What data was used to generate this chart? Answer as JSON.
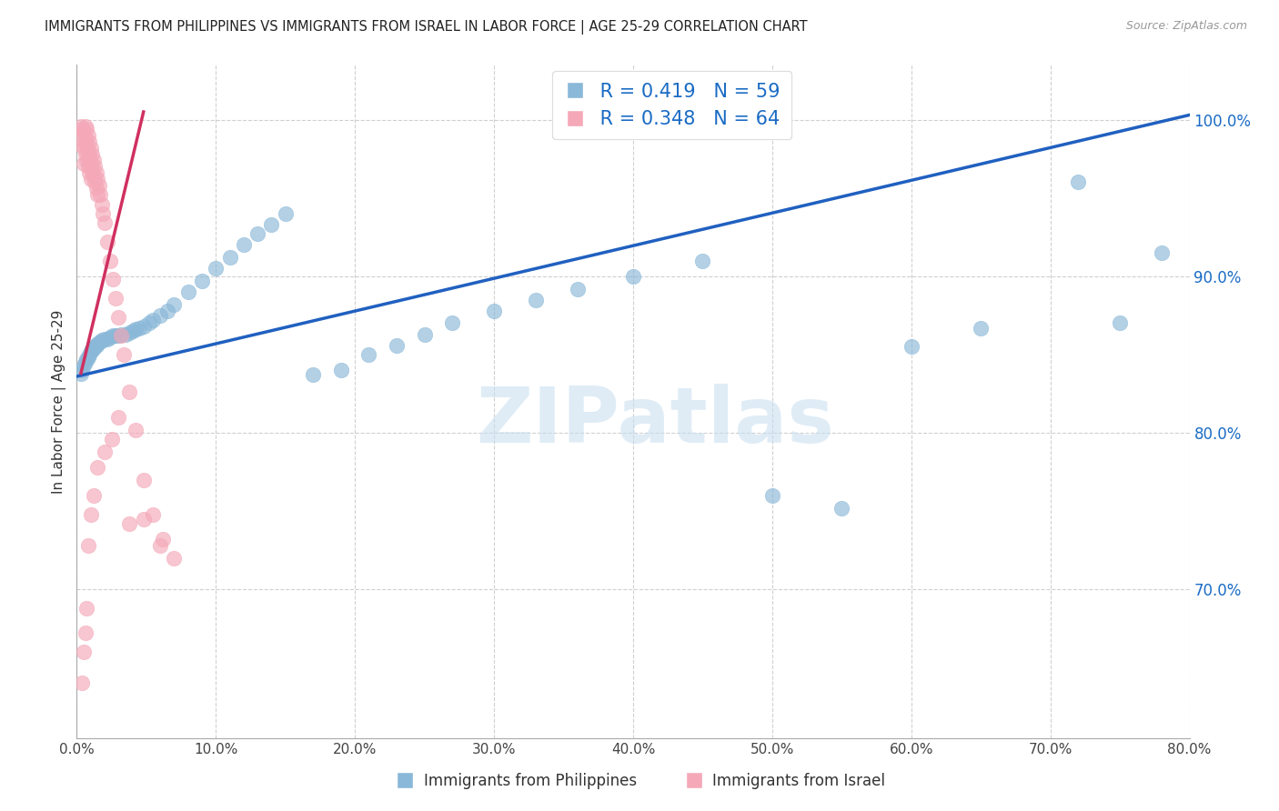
{
  "title": "IMMIGRANTS FROM PHILIPPINES VS IMMIGRANTS FROM ISRAEL IN LABOR FORCE | AGE 25-29 CORRELATION CHART",
  "source": "Source: ZipAtlas.com",
  "ylabel": "In Labor Force | Age 25-29",
  "xlim": [
    0.0,
    0.8
  ],
  "ylim": [
    0.605,
    1.035
  ],
  "ytick_vals": [
    0.7,
    0.8,
    0.9,
    1.0
  ],
  "xtick_vals": [
    0.0,
    0.1,
    0.2,
    0.3,
    0.4,
    0.5,
    0.6,
    0.7,
    0.8
  ],
  "blue_R": "0.419",
  "blue_N": "59",
  "pink_R": "0.348",
  "pink_N": "64",
  "blue_dot_color": "#8ab8d8",
  "pink_dot_color": "#f4a8b8",
  "blue_line_color": "#2060c0",
  "pink_line_color": "#d03060",
  "blue_label": "Immigrants from Philippines",
  "pink_label": "Immigrants from Israel",
  "watermark": "ZIPatlas",
  "blue_trend_x": [
    0.0,
    0.8
  ],
  "blue_trend_y": [
    0.836,
    1.003
  ],
  "pink_trend_x": [
    0.003,
    0.048
  ],
  "pink_trend_y": [
    0.838,
    1.005
  ],
  "blue_x": [
    0.003,
    0.004,
    0.005,
    0.006,
    0.007,
    0.008,
    0.009,
    0.01,
    0.011,
    0.012,
    0.013,
    0.014,
    0.015,
    0.017,
    0.018,
    0.02,
    0.022,
    0.024,
    0.026,
    0.028,
    0.03,
    0.032,
    0.035,
    0.038,
    0.04,
    0.042,
    0.045,
    0.048,
    0.052,
    0.055,
    0.06,
    0.065,
    0.07,
    0.08,
    0.09,
    0.1,
    0.11,
    0.12,
    0.13,
    0.14,
    0.15,
    0.17,
    0.19,
    0.21,
    0.23,
    0.25,
    0.27,
    0.3,
    0.33,
    0.36,
    0.4,
    0.45,
    0.5,
    0.55,
    0.6,
    0.65,
    0.72,
    0.75,
    0.78
  ],
  "blue_y": [
    0.838,
    0.84,
    0.843,
    0.845,
    0.847,
    0.848,
    0.85,
    0.852,
    0.853,
    0.854,
    0.855,
    0.856,
    0.857,
    0.858,
    0.859,
    0.86,
    0.86,
    0.861,
    0.862,
    0.862,
    0.862,
    0.863,
    0.863,
    0.864,
    0.865,
    0.866,
    0.867,
    0.868,
    0.87,
    0.872,
    0.875,
    0.878,
    0.882,
    0.89,
    0.897,
    0.905,
    0.912,
    0.92,
    0.927,
    0.933,
    0.94,
    0.837,
    0.84,
    0.85,
    0.856,
    0.863,
    0.87,
    0.878,
    0.885,
    0.892,
    0.9,
    0.91,
    0.76,
    0.752,
    0.855,
    0.867,
    0.96,
    0.87,
    0.915
  ],
  "pink_x": [
    0.003,
    0.003,
    0.004,
    0.004,
    0.005,
    0.005,
    0.005,
    0.006,
    0.006,
    0.006,
    0.007,
    0.007,
    0.007,
    0.008,
    0.008,
    0.008,
    0.009,
    0.009,
    0.009,
    0.01,
    0.01,
    0.01,
    0.011,
    0.011,
    0.012,
    0.012,
    0.013,
    0.013,
    0.014,
    0.014,
    0.015,
    0.015,
    0.016,
    0.017,
    0.018,
    0.019,
    0.02,
    0.022,
    0.024,
    0.026,
    0.028,
    0.03,
    0.032,
    0.034,
    0.038,
    0.042,
    0.048,
    0.055,
    0.062,
    0.07,
    0.004,
    0.005,
    0.006,
    0.007,
    0.008,
    0.01,
    0.012,
    0.015,
    0.02,
    0.025,
    0.03,
    0.038,
    0.048,
    0.06
  ],
  "pink_y": [
    0.996,
    0.988,
    0.994,
    0.984,
    0.992,
    0.982,
    0.972,
    0.996,
    0.988,
    0.978,
    0.994,
    0.984,
    0.974,
    0.99,
    0.98,
    0.97,
    0.986,
    0.976,
    0.966,
    0.982,
    0.972,
    0.962,
    0.978,
    0.968,
    0.974,
    0.964,
    0.97,
    0.96,
    0.966,
    0.956,
    0.962,
    0.952,
    0.958,
    0.952,
    0.946,
    0.94,
    0.934,
    0.922,
    0.91,
    0.898,
    0.886,
    0.874,
    0.862,
    0.85,
    0.826,
    0.802,
    0.77,
    0.748,
    0.732,
    0.72,
    0.64,
    0.66,
    0.672,
    0.688,
    0.728,
    0.748,
    0.76,
    0.778,
    0.788,
    0.796,
    0.81,
    0.742,
    0.745,
    0.728
  ]
}
